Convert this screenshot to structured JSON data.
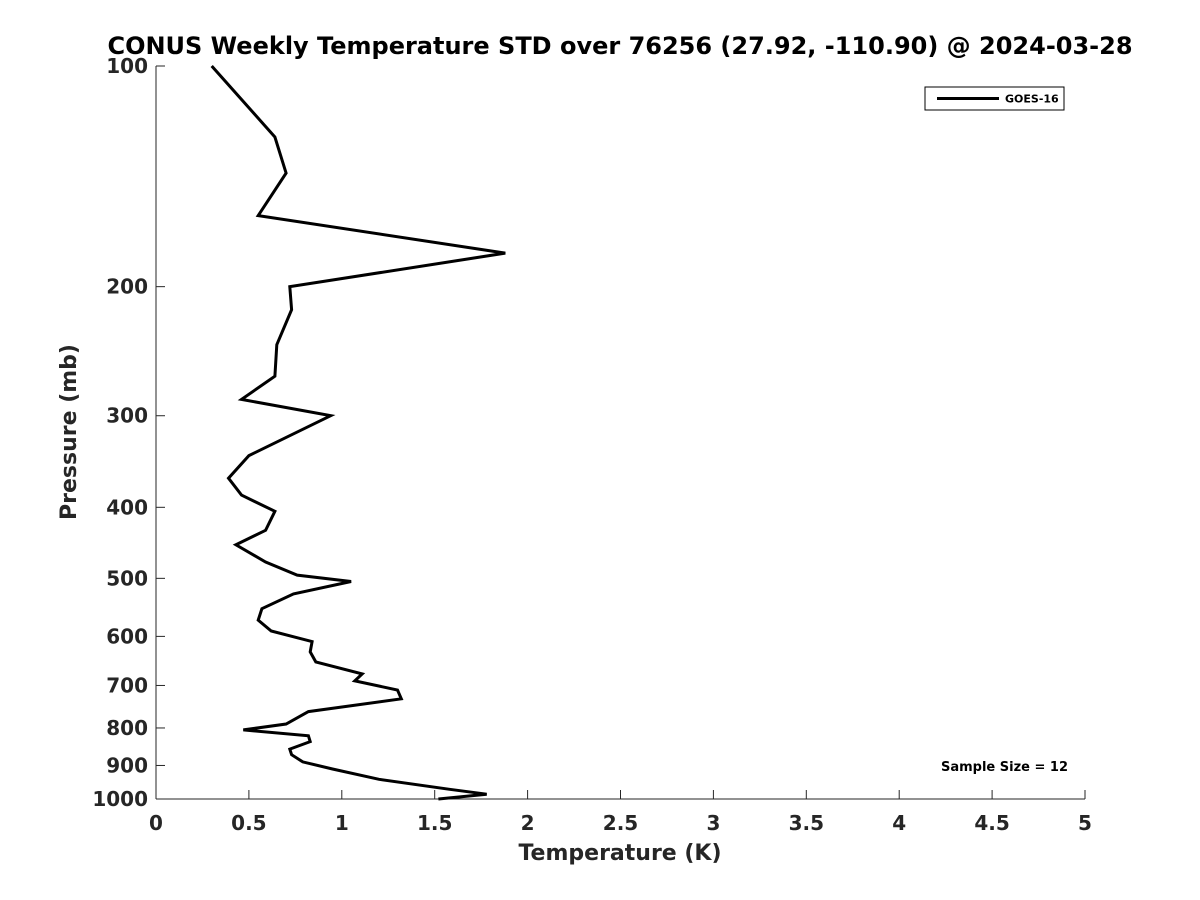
{
  "chart_data": {
    "type": "line",
    "title": "CONUS Weekly Temperature STD over 76256 (27.92, -110.90) @ 2024-03-28",
    "xlabel": "Temperature (K)",
    "ylabel": "Pressure (mb)",
    "xlim": [
      0,
      5
    ],
    "ylim": [
      100,
      1000
    ],
    "y_scale": "log",
    "y_reversed": true,
    "x_ticks": [
      0,
      0.5,
      1,
      1.5,
      2,
      2.5,
      3,
      3.5,
      4,
      4.5,
      5
    ],
    "x_tick_labels": [
      "0",
      "0.5",
      "1",
      "1.5",
      "2",
      "2.5",
      "3",
      "3.5",
      "4",
      "4.5",
      "5"
    ],
    "y_ticks": [
      100,
      200,
      300,
      400,
      500,
      600,
      700,
      800,
      900,
      1000
    ],
    "y_tick_labels": [
      "100",
      "200",
      "300",
      "400",
      "500",
      "600",
      "700",
      "800",
      "900",
      "1000"
    ],
    "grid": false,
    "legend_position": "top-right",
    "series": [
      {
        "name": "GOES-16",
        "color": "#000000",
        "x": [
          0.3,
          0.64,
          0.7,
          0.55,
          1.88,
          0.72,
          0.73,
          0.65,
          0.64,
          0.46,
          0.94,
          0.5,
          0.39,
          0.46,
          0.64,
          0.59,
          0.43,
          0.59,
          0.76,
          1.05,
          0.74,
          0.57,
          0.55,
          0.62,
          0.84,
          0.83,
          0.86,
          1.11,
          1.07,
          1.3,
          1.32,
          0.82,
          0.7,
          0.47,
          0.82,
          0.83,
          0.72,
          0.73,
          0.79,
          0.95,
          1.2,
          1.58,
          1.78,
          1.52
        ],
        "y": [
          100,
          125,
          140,
          160,
          180,
          200,
          215,
          240,
          265,
          285,
          300,
          340,
          365,
          385,
          405,
          430,
          450,
          475,
          495,
          505,
          525,
          550,
          570,
          590,
          610,
          630,
          650,
          675,
          690,
          710,
          730,
          760,
          790,
          805,
          820,
          835,
          855,
          870,
          890,
          910,
          940,
          970,
          985,
          1000
        ]
      }
    ],
    "annotations": [
      "Sample Size = 12"
    ]
  }
}
